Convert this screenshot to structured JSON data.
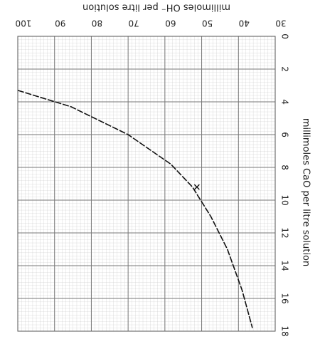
{
  "chart_data": {
    "type": "line",
    "xlabel": "millimoles CaO per litre solution",
    "ylabel": "millimoles OH⁻ per litre solution",
    "xlim": [
      0,
      18
    ],
    "ylim": [
      30,
      100
    ],
    "xticks": [
      0,
      2,
      4,
      6,
      8,
      10,
      12,
      14,
      16,
      18
    ],
    "yticks": [
      30,
      40,
      50,
      60,
      70,
      80,
      90,
      100
    ],
    "grid": true,
    "series": [
      {
        "color": "#111111",
        "x": [
          3.3,
          4.3,
          6.0,
          7.8,
          9.2,
          11.0,
          13.0,
          15.5,
          17.8
        ],
        "values": [
          100,
          85.5,
          70,
          58.4,
          52.5,
          47.5,
          43,
          39,
          36.2
        ]
      }
    ],
    "marker": {
      "x": 9.2,
      "y": 51.3
    }
  }
}
